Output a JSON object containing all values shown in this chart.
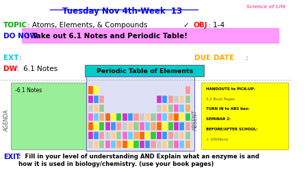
{
  "bg_color": "#ffffff",
  "title_text": "Tuesday Nov 4th-Week  13",
  "title_color": "#0000ff",
  "science_text": "Science of Life",
  "science_color": "#ff69b4",
  "topic_label": "TOPIC",
  "topic_label_color": "#00aa00",
  "topic_text": ": Atoms, Elements, & Compounds",
  "topic_text_color": "#000000",
  "obj_check": "✓ ",
  "obj_check_color": "#000000",
  "obj_label": "OBJ",
  "obj_label_color": "#ff0000",
  "obj_text": " : 1-4",
  "obj_text_color": "#000000",
  "donow_label": "DO NOW",
  "donow_label_color": "#0000ff",
  "donow_text": ": Take out 6.1 Notes and Periodic Table!",
  "donow_bg": "#ff99ff",
  "donow_text_color": "#000000",
  "ext_label": "EXT",
  "ext_label_color": "#00cccc",
  "duedate_label": "DUE DATE",
  "duedate_color": "#ffaa00",
  "dw_label": "DW",
  "dw_label_color": "#ff0000",
  "dw_text": ":  6.1 Notes",
  "dw_text_color": "#000000",
  "periodic_title": "Periodic Table of Elements",
  "periodic_title_bg": "#00cccc",
  "periodic_title_color": "#000000",
  "agenda_label": "AGENDA",
  "agenda_label_color": "#555555",
  "absent_label": "ABSENT",
  "absent_label_color": "#555555",
  "agenda_box_color": "#99ee99",
  "agenda_box_text": "-6.1 Notes",
  "agenda_box_text_color": "#000000",
  "absent_box_color": "#ffff00",
  "absent_lines": [
    {
      "text": "HANDOUTS to PICK-UP:",
      "bold": true,
      "color": "#000000"
    },
    {
      "text": "4.2 Book Pages",
      "bold": false,
      "color": "#555555"
    },
    {
      "text": "TURN IN to ABS box:",
      "bold": true,
      "color": "#000000"
    },
    {
      "text": "SEMINAR 2:",
      "bold": true,
      "color": "#000000"
    },
    {
      "text": "BEFORE/AFTER SCHOOL:",
      "bold": true,
      "color": "#000000"
    },
    {
      "text": "+ DW/None",
      "bold": false,
      "color": "#555555"
    }
  ],
  "exit_label": "EXIT",
  "exit_label_color": "#0000ff",
  "exit_text": ":  Fill in your level of understanding AND Explain what an enzyme is and\nhow it is used in biology/chemistry. (use your book pages)",
  "exit_text_color": "#000000",
  "divider_color": "#aaaaaa",
  "pt_cell_colors": [
    "#ff6600",
    "#ffff33",
    "#33cc33",
    "#cc33cc",
    "#3399ff",
    "#ff9999",
    "#cccccc",
    "#ffcc99",
    "#99cc99",
    "#ff66cc",
    "#66ccff",
    "#ffaa66"
  ]
}
